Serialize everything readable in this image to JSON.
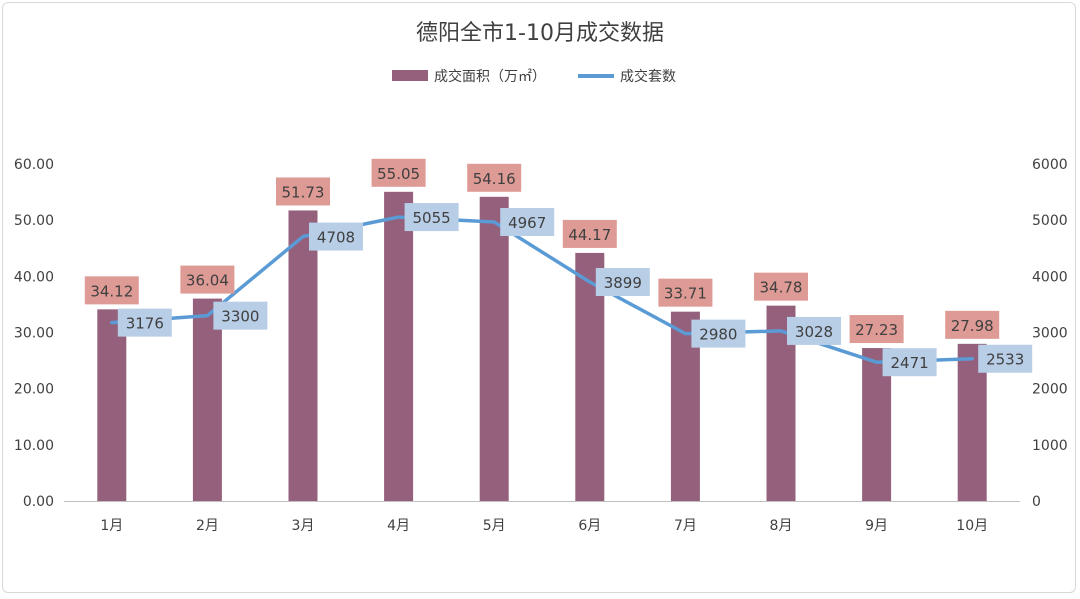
{
  "chart_data": {
    "type": "bar+line",
    "title": "德阳全市1-10月成交数据",
    "categories": [
      "1月",
      "2月",
      "3月",
      "4月",
      "5月",
      "6月",
      "7月",
      "8月",
      "9月",
      "10月"
    ],
    "series": [
      {
        "name": "成交面积（万㎡）",
        "type": "bar",
        "axis": "left",
        "values": [
          34.12,
          36.04,
          51.73,
          55.05,
          54.16,
          44.17,
          33.71,
          34.78,
          27.23,
          27.98
        ],
        "labels": [
          "34.12",
          "36.04",
          "51.73",
          "55.05",
          "54.16",
          "44.17",
          "33.71",
          "34.78",
          "27.23",
          "27.98"
        ],
        "color": "#94607b",
        "label_bg": "#de9a94"
      },
      {
        "name": "成交套数",
        "type": "line",
        "axis": "right",
        "values": [
          3176,
          3300,
          4708,
          5055,
          4967,
          3899,
          2980,
          3028,
          2471,
          2533
        ],
        "labels": [
          "3176",
          "3300",
          "4708",
          "5055",
          "4967",
          "3899",
          "2980",
          "3028",
          "2471",
          "2533"
        ],
        "color": "#5b9bd5",
        "label_bg": "#b8cde6"
      }
    ],
    "y_left": {
      "ylim": [
        0,
        60
      ],
      "ticks": [
        "0.00",
        "10.00",
        "20.00",
        "30.00",
        "40.00",
        "50.00",
        "60.00"
      ]
    },
    "y_right": {
      "ylim": [
        0,
        6000
      ],
      "ticks": [
        "0",
        "1000",
        "2000",
        "3000",
        "4000",
        "5000",
        "6000"
      ]
    },
    "grid": false,
    "legend_position": "top-center"
  }
}
